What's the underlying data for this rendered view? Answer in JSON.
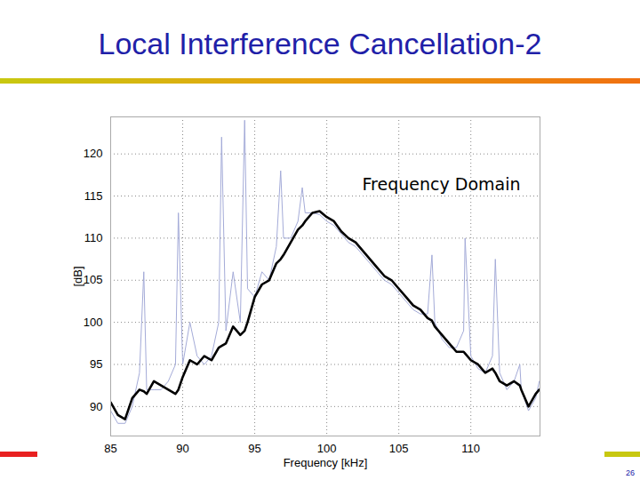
{
  "chart_data": {
    "type": "line",
    "title": "Local Interference Cancellation-2",
    "annotation": "Frequency Domain",
    "x_label": "Frequency [kHz]",
    "y_label": "[dB]",
    "page_number": "26",
    "x": [
      85,
      85.5,
      86,
      86.5,
      87,
      87.3,
      87.5,
      88,
      88.5,
      89,
      89.5,
      89.7,
      90,
      90.5,
      91,
      91.5,
      92,
      92.5,
      92.7,
      93,
      93.5,
      94,
      94.3,
      94.5,
      95,
      95.5,
      96,
      96.5,
      96.8,
      97,
      97.5,
      98,
      98.3,
      98.5,
      99,
      99.5,
      100,
      100.5,
      101,
      101.5,
      102,
      102.5,
      103,
      103.5,
      104,
      104.5,
      105,
      105.5,
      106,
      106.5,
      107,
      107.3,
      107.5,
      108,
      108.5,
      109,
      109.5,
      109.6,
      110,
      110.5,
      111,
      111.5,
      111.7,
      112,
      112.5,
      113,
      113.4,
      113.5,
      114,
      114.5,
      114.75
    ],
    "series": [
      {
        "color": "#a4abd8",
        "values": [
          89.5,
          88,
          88,
          90,
          94,
          106,
          92,
          92,
          92,
          93,
          95,
          113,
          95,
          100,
          96,
          95,
          96,
          100,
          122,
          99,
          106,
          100,
          124,
          104,
          103,
          106,
          105,
          109,
          118,
          110,
          110,
          112,
          116,
          113,
          113,
          112.8,
          112,
          111.5,
          110.5,
          109.5,
          109,
          108,
          107,
          106,
          105,
          104.5,
          103.5,
          102.5,
          101.5,
          101,
          101,
          108,
          100,
          98,
          97,
          97,
          99,
          110,
          96,
          94.5,
          94,
          96,
          107.5,
          94,
          92,
          93,
          95,
          92,
          89.5,
          91,
          93
        ]
      },
      {
        "color": "#000000",
        "values": [
          90.5,
          89,
          88.5,
          91,
          92,
          91.8,
          91.5,
          93,
          92.5,
          92,
          91.5,
          92,
          93.5,
          95.5,
          95,
          96,
          95.5,
          97,
          97.2,
          97.5,
          99.5,
          98.5,
          99,
          100,
          103,
          104.5,
          105,
          107,
          107.5,
          108,
          109.5,
          111,
          111.5,
          112,
          113,
          113.2,
          112.5,
          112,
          110.8,
          110,
          109.5,
          108.5,
          107.5,
          106.5,
          105.5,
          105,
          104,
          103,
          102,
          101.5,
          100.5,
          100.2,
          99.5,
          98.5,
          97.5,
          96.5,
          96.5,
          96.3,
          95.5,
          95,
          94,
          94.5,
          94,
          93,
          92.5,
          93,
          92.5,
          92,
          90,
          91.5,
          92
        ]
      }
    ],
    "xlim": [
      85,
      114.8
    ],
    "ylim": [
      86.5,
      124.4
    ],
    "xticks": [
      85,
      90,
      95,
      100,
      105,
      110
    ],
    "yticks": [
      90,
      95,
      100,
      105,
      110,
      115,
      120
    ],
    "grid": true
  }
}
